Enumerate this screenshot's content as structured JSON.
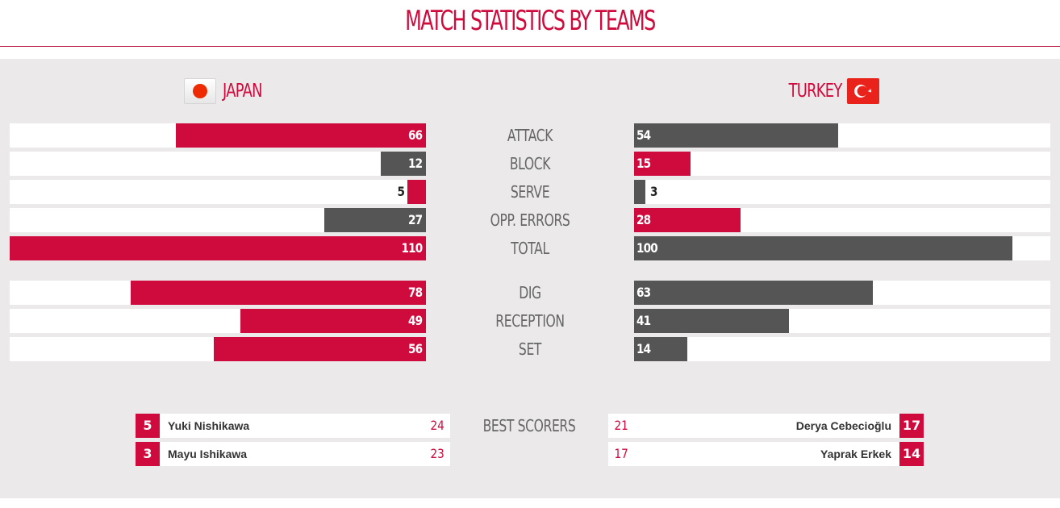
{
  "title": "MATCH STATISTICS BY TEAMS",
  "teams": {
    "left": {
      "name": "JAPAN",
      "flag_icon": "japan-flag-icon"
    },
    "right": {
      "name": "TURKEY",
      "flag_icon": "turkey-flag-icon"
    }
  },
  "colors": {
    "accent": "#cf0a3c",
    "dark": "#555555",
    "background": "#ebe9ea"
  },
  "stats": [
    {
      "label": "ATTACK",
      "left": "66",
      "right": "54",
      "left_fraction": 0.6,
      "right_fraction": 0.49,
      "left_color": "red",
      "right_color": "gray"
    },
    {
      "label": "BLOCK",
      "left": "12",
      "right": "15",
      "left_fraction": 0.109,
      "right_fraction": 0.136,
      "left_color": "gray",
      "right_color": "red"
    },
    {
      "label": "SERVE",
      "left": "5",
      "right": "3",
      "left_fraction": 0.045,
      "right_fraction": 0.027,
      "left_color": "red",
      "right_color": "gray"
    },
    {
      "label": "OPP. ERRORS",
      "left": "27",
      "right": "28",
      "left_fraction": 0.245,
      "right_fraction": 0.255,
      "left_color": "gray",
      "right_color": "red"
    },
    {
      "label": "TOTAL",
      "left": "110",
      "right": "100",
      "left_fraction": 1.0,
      "right_fraction": 0.909,
      "left_color": "red",
      "right_color": "gray"
    }
  ],
  "skills": [
    {
      "label": "DIG",
      "left": "78",
      "right": "63",
      "left_fraction": 0.709,
      "right_fraction": 0.573,
      "left_color": "red",
      "right_color": "gray"
    },
    {
      "label": "RECEPTION",
      "left": "49",
      "right": "41",
      "left_fraction": 0.445,
      "right_fraction": 0.373,
      "left_color": "red",
      "right_color": "gray"
    },
    {
      "label": "SET",
      "left": "56",
      "right": "14",
      "left_fraction": 0.509,
      "right_fraction": 0.127,
      "left_color": "red",
      "right_color": "gray"
    }
  ],
  "best_scorers": {
    "label": "BEST SCORERS",
    "left": [
      {
        "number": "5",
        "name": "Yuki Nishikawa",
        "points": "24"
      },
      {
        "number": "3",
        "name": "Mayu Ishikawa",
        "points": "23"
      }
    ],
    "right": [
      {
        "number": "17",
        "name": "Derya Cebecioğlu",
        "points": "21"
      },
      {
        "number": "14",
        "name": "Yaprak Erkek",
        "points": "17"
      }
    ]
  }
}
